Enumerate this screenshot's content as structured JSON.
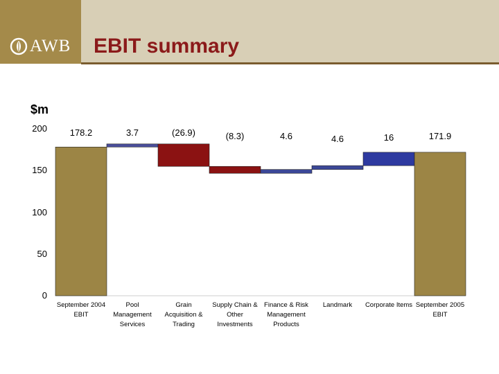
{
  "header": {
    "logo_text": "AWB",
    "title": "EBIT summary"
  },
  "colors": {
    "header_bg": "#d8cfb6",
    "logo_bg": "#a48a4a",
    "title": "#8b1a1a",
    "total_bar": "#9c8545",
    "pool_bar": "#4a4e9a",
    "grain_bar": "#8b1212",
    "supply_bar": "#8b1212",
    "finance_bar": "#3c4898",
    "landmark_bar": "#3c4898",
    "corporate_bar": "#2e3aa0"
  },
  "chart_data": {
    "type": "waterfall",
    "title": "EBIT summary",
    "ylabel": "$m",
    "ylim": [
      0,
      200
    ],
    "yticks": [
      "0",
      "50",
      "100",
      "150",
      "200"
    ],
    "categories": [
      "September 2004 EBIT",
      "Pool Management Services",
      "Grain Acquisition & Trading",
      "Supply Chain & Other Investments",
      "Finance & Risk Management Products",
      "Landmark",
      "Corporate Items",
      "September 2005 EBIT"
    ],
    "category_lines": [
      [
        "September 2004",
        "EBIT"
      ],
      [
        "Pool",
        "Management",
        "Services"
      ],
      [
        "Grain",
        "Acquisition &",
        "Trading"
      ],
      [
        "Supply Chain &",
        "Other",
        "Investments"
      ],
      [
        "Finance & Risk",
        "Management",
        "Products"
      ],
      [
        "Landmark"
      ],
      [
        "Corporate Items"
      ],
      [
        "September 2005",
        "EBIT"
      ]
    ],
    "values": [
      178.2,
      3.7,
      -26.9,
      -8.3,
      4.6,
      4.6,
      16,
      171.9
    ],
    "bar_types": [
      "total",
      "delta",
      "delta",
      "delta",
      "delta",
      "delta",
      "delta",
      "total"
    ],
    "bar_keys": [
      "total_bar",
      "pool_bar",
      "grain_bar",
      "supply_bar",
      "finance_bar",
      "landmark_bar",
      "corporate_bar",
      "total_bar"
    ],
    "data_labels": [
      "178.2",
      "3.7",
      "(26.9)",
      "(8.3)",
      "4.6",
      "4.6",
      "16",
      "171.9"
    ]
  }
}
